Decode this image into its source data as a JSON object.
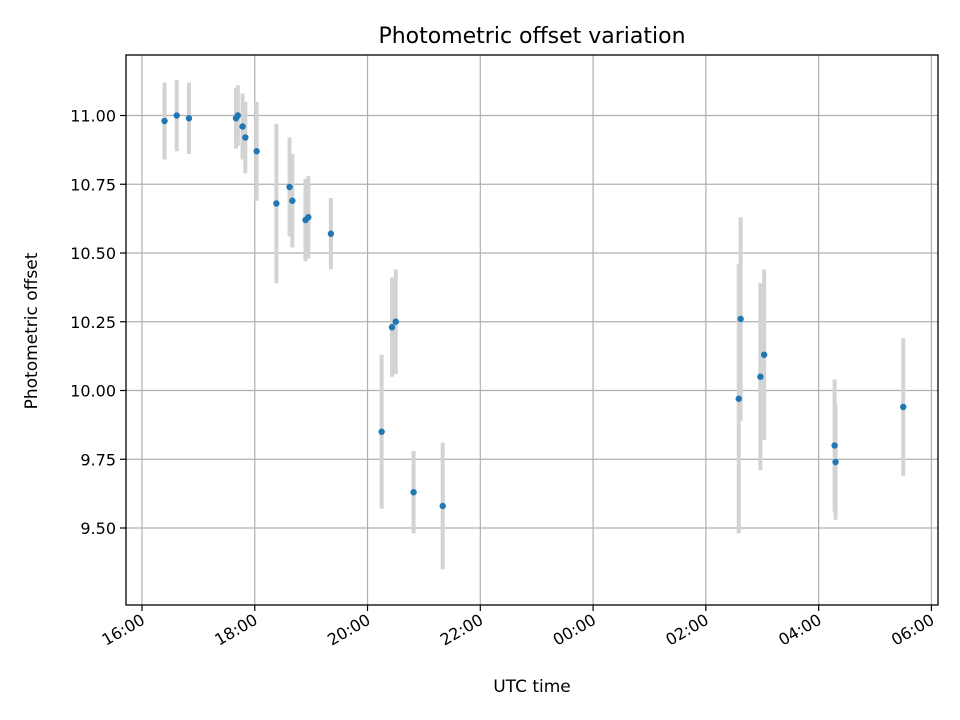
{
  "chart_data": {
    "type": "scatter",
    "title": "Photometric offset variation",
    "xlabel": "UTC time",
    "ylabel": "Photometric offset",
    "grid": true,
    "xlim": [
      "15:43",
      "06:07"
    ],
    "ylim": [
      9.22,
      11.22
    ],
    "x_tick_labels": [
      "16:00",
      "18:00",
      "20:00",
      "22:00",
      "00:00",
      "02:00",
      "04:00",
      "06:00"
    ],
    "y_tick_values": [
      9.5,
      9.75,
      10.0,
      10.25,
      10.5,
      10.75,
      11.0
    ],
    "y_tick_labels": [
      "9.50",
      "9.75",
      "10.00",
      "10.25",
      "10.50",
      "10.75",
      "11.00"
    ],
    "colors": {
      "point": "#1f77b4",
      "errorbar": "#d3d3d3",
      "grid": "#b0b0b0"
    },
    "points": [
      {
        "x": "16:24",
        "y": 10.98,
        "err": 0.14
      },
      {
        "x": "16:37",
        "y": 11.0,
        "err": 0.13
      },
      {
        "x": "16:50",
        "y": 10.99,
        "err": 0.13
      },
      {
        "x": "17:40",
        "y": 10.99,
        "err": 0.11
      },
      {
        "x": "17:42",
        "y": 11.0,
        "err": 0.11
      },
      {
        "x": "17:47",
        "y": 10.96,
        "err": 0.12
      },
      {
        "x": "17:50",
        "y": 10.92,
        "err": 0.13
      },
      {
        "x": "18:02",
        "y": 10.87,
        "err": 0.18
      },
      {
        "x": "18:23",
        "y": 10.68,
        "err": 0.29
      },
      {
        "x": "18:37",
        "y": 10.74,
        "err": 0.18
      },
      {
        "x": "18:40",
        "y": 10.69,
        "err": 0.17
      },
      {
        "x": "18:54",
        "y": 10.62,
        "err": 0.15
      },
      {
        "x": "18:57",
        "y": 10.63,
        "err": 0.15
      },
      {
        "x": "19:21",
        "y": 10.57,
        "err": 0.13
      },
      {
        "x": "20:15",
        "y": 9.85,
        "err": 0.28
      },
      {
        "x": "20:26",
        "y": 10.23,
        "err": 0.18
      },
      {
        "x": "20:30",
        "y": 10.25,
        "err": 0.19
      },
      {
        "x": "20:49",
        "y": 9.63,
        "err": 0.15
      },
      {
        "x": "21:20",
        "y": 9.58,
        "err": 0.23
      },
      {
        "x": "02:35",
        "y": 9.97,
        "err": 0.49
      },
      {
        "x": "02:37",
        "y": 10.26,
        "err": 0.37
      },
      {
        "x": "02:58",
        "y": 10.05,
        "err": 0.34
      },
      {
        "x": "03:02",
        "y": 10.13,
        "err": 0.31
      },
      {
        "x": "04:17",
        "y": 9.8,
        "err": 0.24
      },
      {
        "x": "04:18",
        "y": 9.74,
        "err": 0.21
      },
      {
        "x": "05:30",
        "y": 9.94,
        "err": 0.25
      }
    ]
  }
}
